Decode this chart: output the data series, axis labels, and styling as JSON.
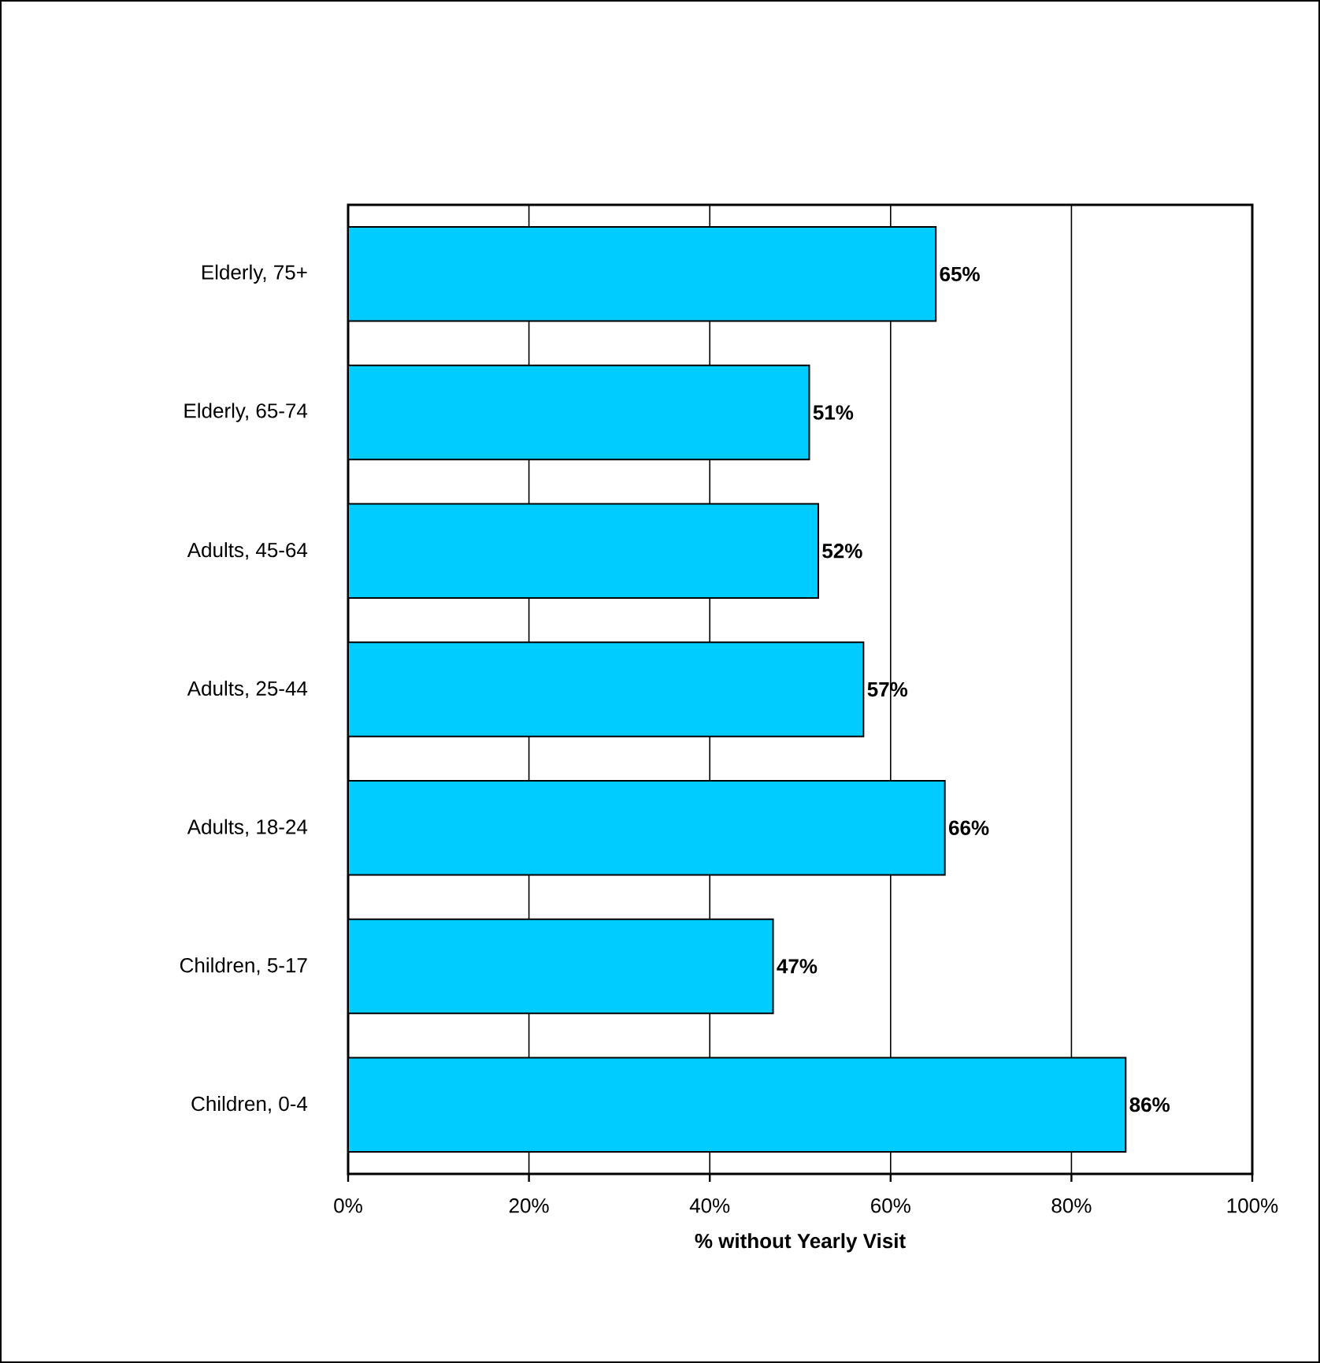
{
  "chart_data": {
    "type": "bar",
    "orientation": "horizontal",
    "xlabel": "% without Yearly Visit",
    "categories": [
      "Elderly, 75+",
      "Elderly, 65-74",
      "Adults, 45-64",
      "Adults, 25-44",
      "Adults, 18-24",
      "Children, 5-17",
      "Children, 0-4"
    ],
    "values": [
      65,
      51,
      52,
      57,
      66,
      47,
      86
    ],
    "value_labels": [
      "65%",
      "51%",
      "52%",
      "57%",
      "66%",
      "47%",
      "86%"
    ],
    "color": "#00ccff",
    "xlim": [
      0,
      100
    ],
    "xticks": [
      {
        "value": 0,
        "label": "0%"
      },
      {
        "value": 20,
        "label": "20%"
      },
      {
        "value": 40,
        "label": "40%"
      },
      {
        "value": 60,
        "label": "60%"
      },
      {
        "value": 80,
        "label": "80%"
      },
      {
        "value": 100,
        "label": "100%"
      }
    ],
    "grid": "x"
  }
}
